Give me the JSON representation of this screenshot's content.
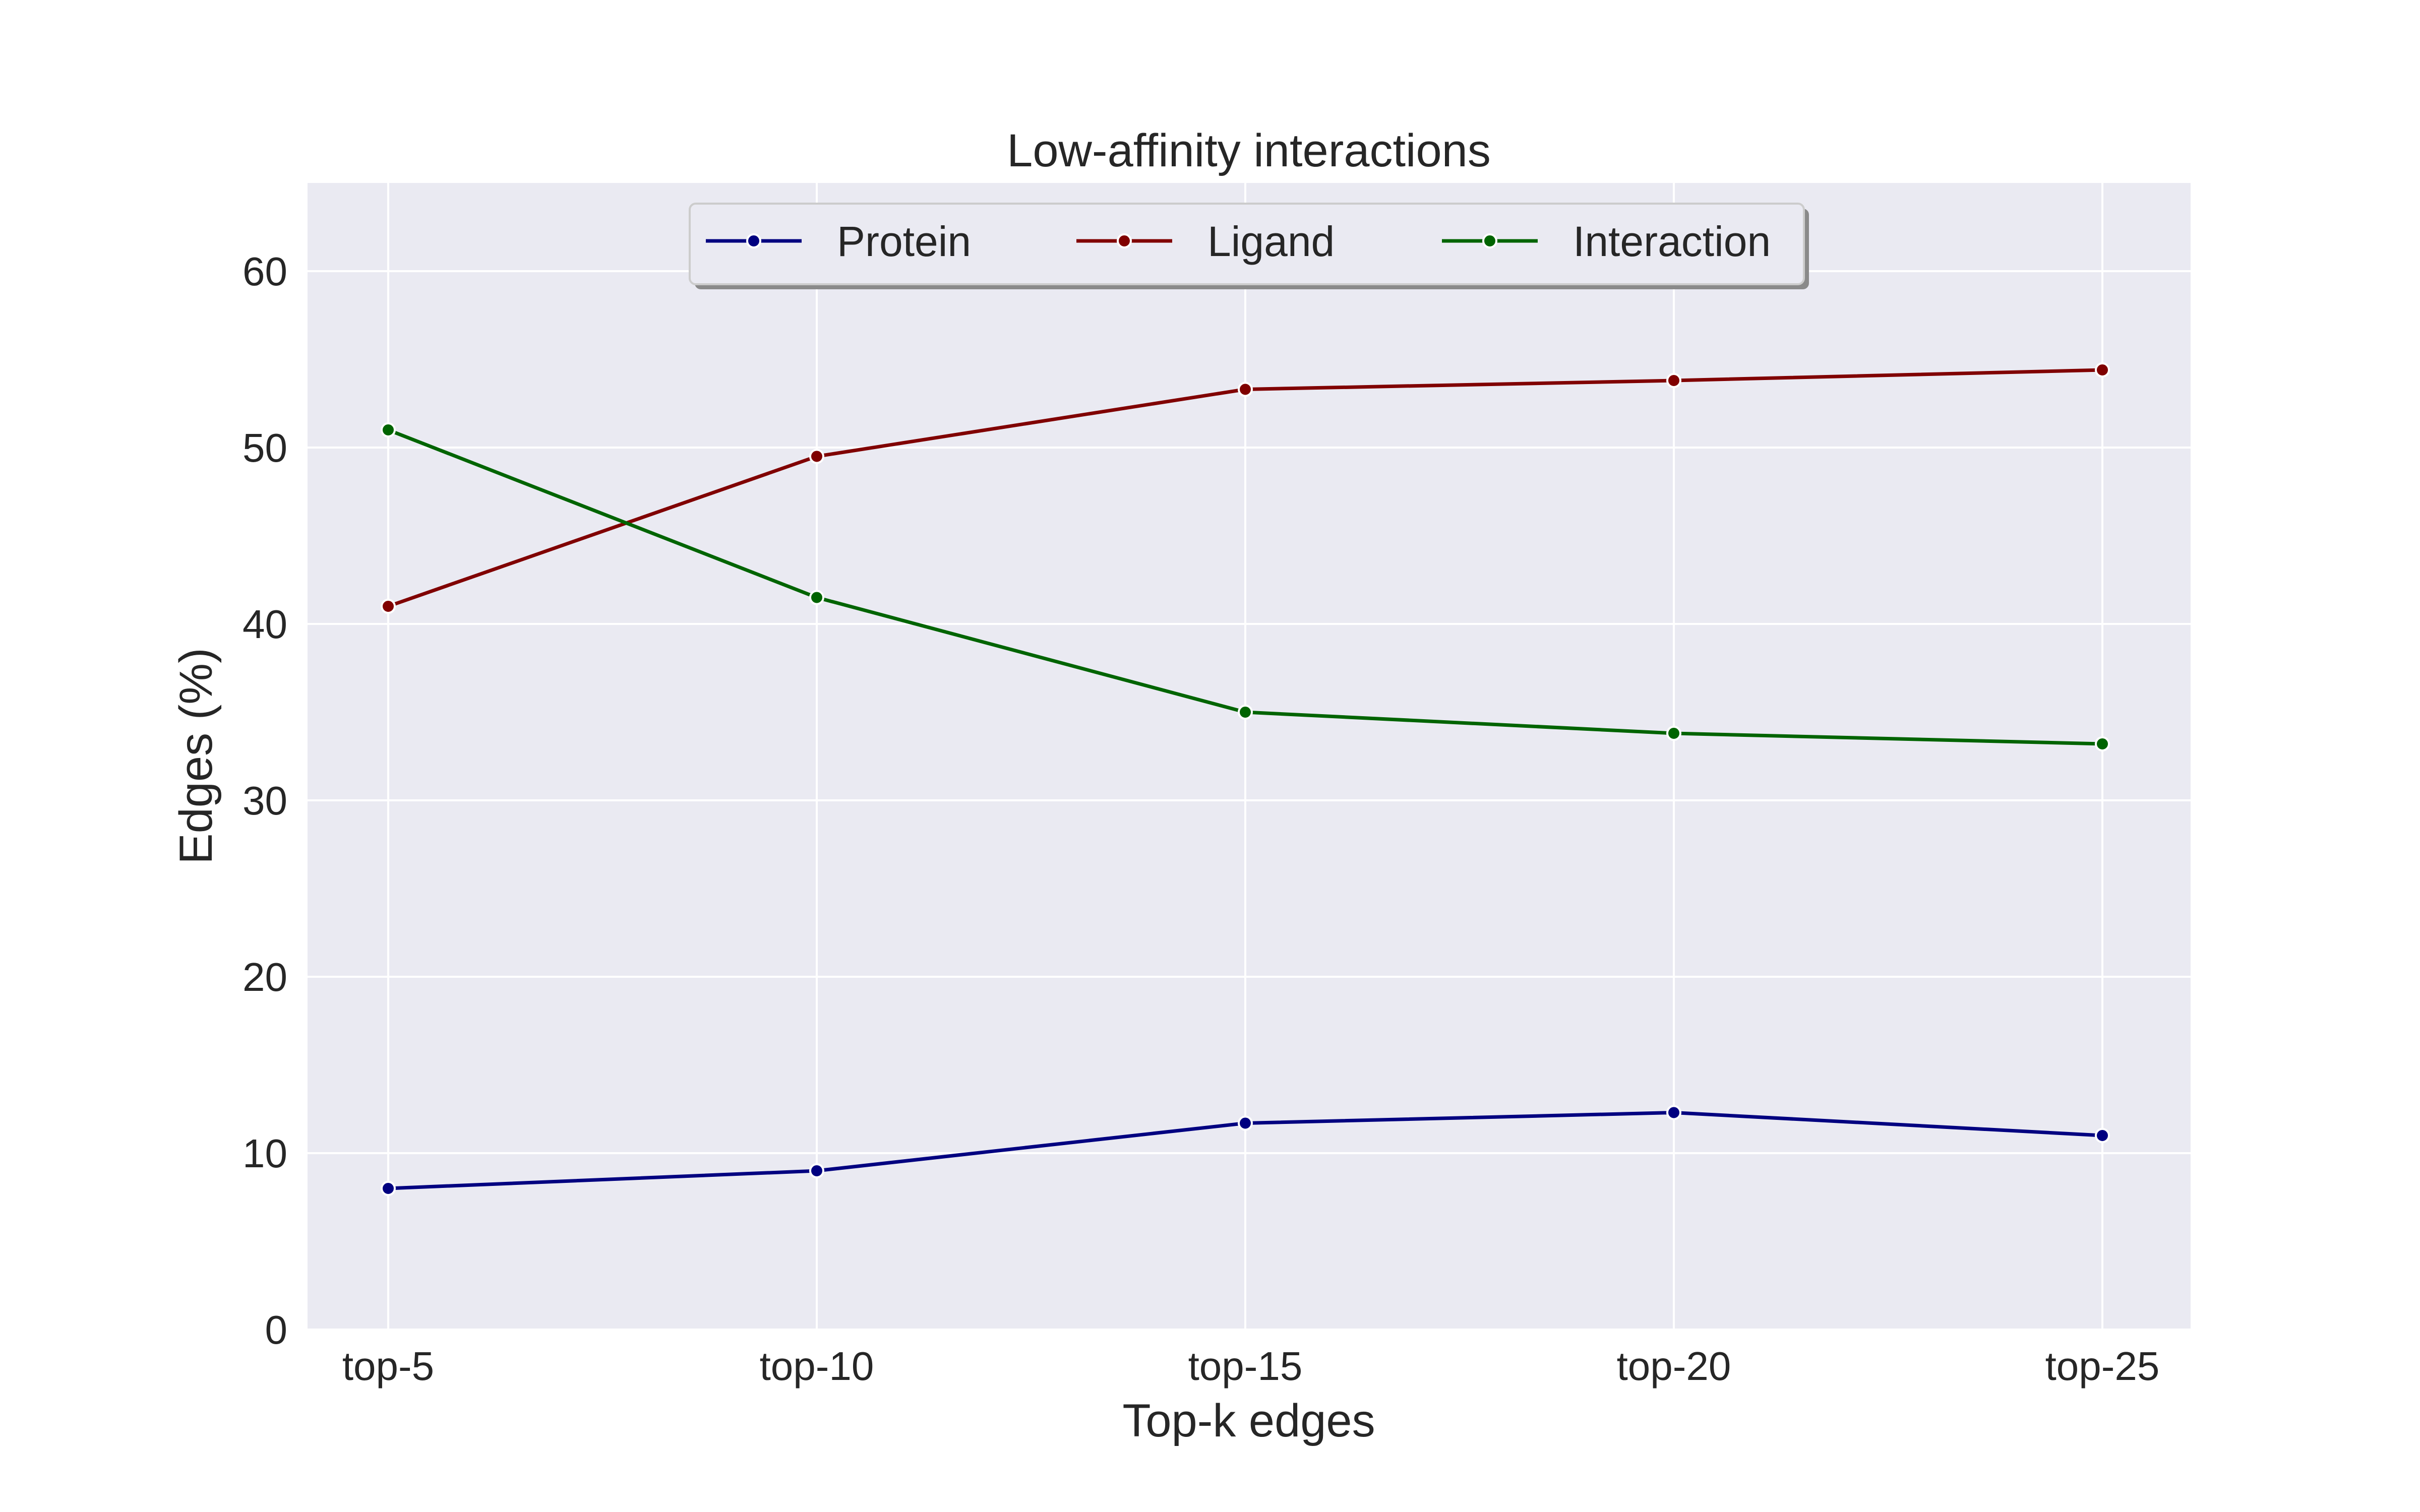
{
  "chart_data": {
    "type": "line",
    "title": "Low-affinity interactions",
    "xlabel": "Top-k edges",
    "ylabel": "Edges (%)",
    "categories": [
      "top-5",
      "top-10",
      "top-15",
      "top-20",
      "top-25"
    ],
    "ylim": [
      0,
      65
    ],
    "yticks": [
      0,
      10,
      20,
      30,
      40,
      50,
      60
    ],
    "grid": true,
    "legend_position": "top-center",
    "series": [
      {
        "name": "Protein",
        "color": "#000080",
        "values": [
          8.0,
          9.0,
          11.7,
          12.3,
          11.0
        ]
      },
      {
        "name": "Ligand",
        "color": "#800000",
        "values": [
          41.0,
          49.5,
          53.3,
          53.8,
          54.4
        ]
      },
      {
        "name": "Interaction",
        "color": "#006400",
        "values": [
          51.0,
          41.5,
          35.0,
          33.8,
          33.2
        ]
      }
    ]
  },
  "colors": {
    "plot_background": "#EAEAF2",
    "grid": "#FFFFFF",
    "text": "#262626"
  }
}
